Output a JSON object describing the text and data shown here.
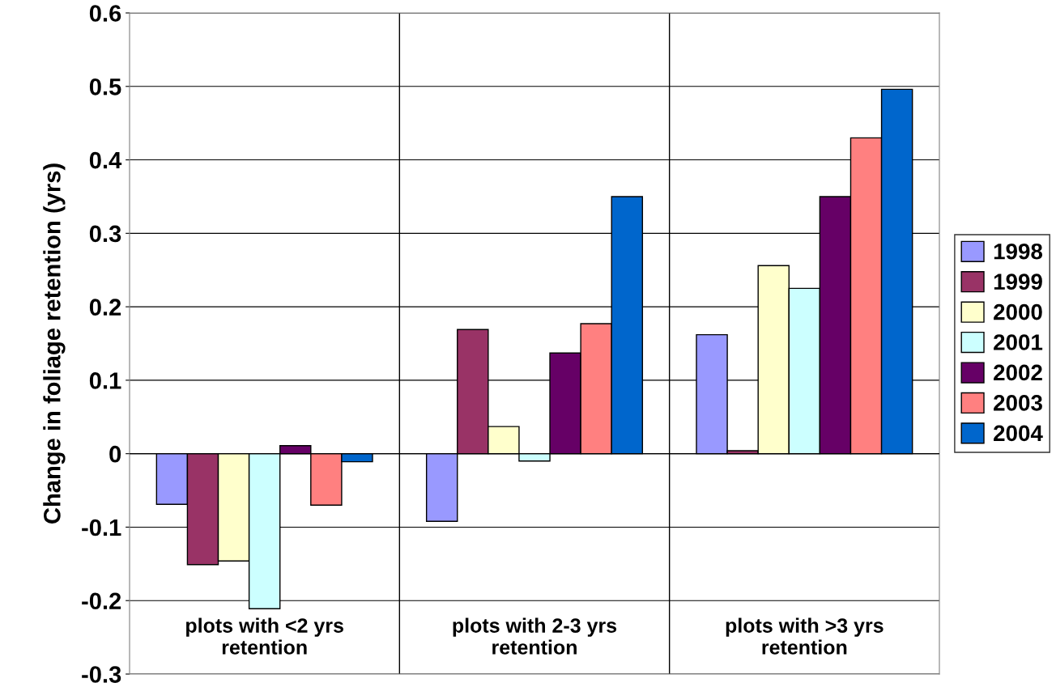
{
  "chart_data": {
    "type": "bar",
    "ylabel": "Change in foliage retention (yrs)",
    "categories": [
      "plots with <2 yrs\nretention",
      "plots with 2-3 yrs\nretention",
      "plots with >3 yrs\nretention"
    ],
    "series": [
      {
        "name": "1998",
        "color": "#9999ff",
        "values": [
          -0.069,
          -0.092,
          0.162
        ]
      },
      {
        "name": "1999",
        "color": "#993366",
        "values": [
          -0.151,
          0.169,
          0.004
        ]
      },
      {
        "name": "2000",
        "color": "#ffffcc",
        "values": [
          -0.146,
          0.037,
          0.256
        ]
      },
      {
        "name": "2001",
        "color": "#ccffff",
        "values": [
          -0.211,
          -0.01,
          0.225
        ]
      },
      {
        "name": "2002",
        "color": "#660066",
        "values": [
          0.011,
          0.137,
          0.35
        ]
      },
      {
        "name": "2003",
        "color": "#ff8080",
        "values": [
          -0.07,
          0.177,
          0.43
        ]
      },
      {
        "name": "2004",
        "color": "#0066cc",
        "values": [
          -0.011,
          0.35,
          0.496
        ]
      }
    ],
    "ylim": [
      -0.3,
      0.6
    ],
    "yticks": [
      -0.3,
      -0.2,
      -0.1,
      0,
      0.1,
      0.2,
      0.3,
      0.4,
      0.5,
      0.6
    ],
    "grid": true,
    "legend": "right"
  }
}
